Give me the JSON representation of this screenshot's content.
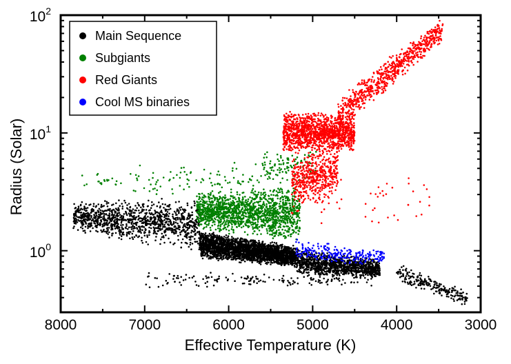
{
  "chart_data": {
    "type": "scatter",
    "title": "",
    "xlabel": "Effective Temperature (K)",
    "ylabel": "Radius (Solar)",
    "x_scale": "linear",
    "x_reversed": true,
    "xlim": [
      8000,
      3000
    ],
    "y_scale": "log",
    "ylim": [
      0.3,
      100
    ],
    "x_ticks": [
      8000,
      7000,
      6000,
      5000,
      4000,
      3000
    ],
    "x_tick_labels": [
      "8000",
      "7000",
      "6000",
      "5000",
      "4000",
      "3000"
    ],
    "y_ticks": [
      1,
      10,
      100
    ],
    "y_tick_labels": [
      {
        "base": "10",
        "exp": "0"
      },
      {
        "base": "10",
        "exp": "1"
      },
      {
        "base": "10",
        "exp": "2"
      }
    ],
    "legend_position": "top-left",
    "series": [
      {
        "name": "Main Sequence",
        "color": "#000000",
        "regions": [
          {
            "teff": [
              7850,
              6350
            ],
            "r_low": [
              1.45,
              0.95
            ],
            "r_high": [
              2.6,
              2.9
            ],
            "n": 1100
          },
          {
            "teff": [
              6350,
              5200
            ],
            "r_low": [
              0.85,
              0.72
            ],
            "r_high": [
              1.5,
              1.1
            ],
            "n": 2600
          },
          {
            "teff": [
              5200,
              4200
            ],
            "r_low": [
              0.62,
              0.58
            ],
            "r_high": [
              1.05,
              0.85
            ],
            "n": 1100
          },
          {
            "teff": [
              4000,
              3150
            ],
            "r_low": [
              0.55,
              0.33
            ],
            "r_high": [
              0.82,
              0.45
            ],
            "n": 220
          },
          {
            "teff": [
              7000,
              4300
            ],
            "r_low": [
              0.48,
              0.5
            ],
            "r_high": [
              0.7,
              0.62
            ],
            "n": 150
          }
        ]
      },
      {
        "name": "Subgiants",
        "color": "#008000",
        "regions": [
          {
            "teff": [
              6380,
              5150
            ],
            "r_low": [
              1.5,
              1.15
            ],
            "r_high": [
              3.2,
              3.6
            ],
            "n": 1500
          },
          {
            "teff": [
              7750,
              5200
            ],
            "r_low": [
              2.9,
              3.0
            ],
            "r_high": [
              5.2,
              6.5
            ],
            "n": 130
          },
          {
            "teff": [
              5600,
              4950
            ],
            "r_low": [
              3.5,
              4.0
            ],
            "r_high": [
              7.0,
              8.0
            ],
            "n": 90
          }
        ]
      },
      {
        "name": "Red Giants",
        "color": "#ff0000",
        "regions": [
          {
            "teff": [
              5350,
              4500
            ],
            "r_low": [
              6.5,
              7.0
            ],
            "r_high": [
              16,
              14
            ],
            "n": 1300
          },
          {
            "teff": [
              5250,
              4700
            ],
            "r_low": [
              2.0,
              3.0
            ],
            "r_high": [
              7.0,
              8.0
            ],
            "n": 500
          },
          {
            "teff": [
              4700,
              3450
            ],
            "r_low": [
              10,
              60
            ],
            "r_high": [
              20,
              100
            ],
            "n": 700
          },
          {
            "teff": [
              4900,
              3600
            ],
            "r_low": [
              1.6,
              1.6
            ],
            "r_high": [
              4.0,
              4.5
            ],
            "n": 40
          }
        ]
      },
      {
        "name": "Cool MS binaries",
        "color": "#0000ff",
        "regions": [
          {
            "teff": [
              5200,
              4150
            ],
            "r_low": [
              0.78,
              0.75
            ],
            "r_high": [
              1.3,
              1.0
            ],
            "n": 230
          }
        ]
      }
    ]
  }
}
